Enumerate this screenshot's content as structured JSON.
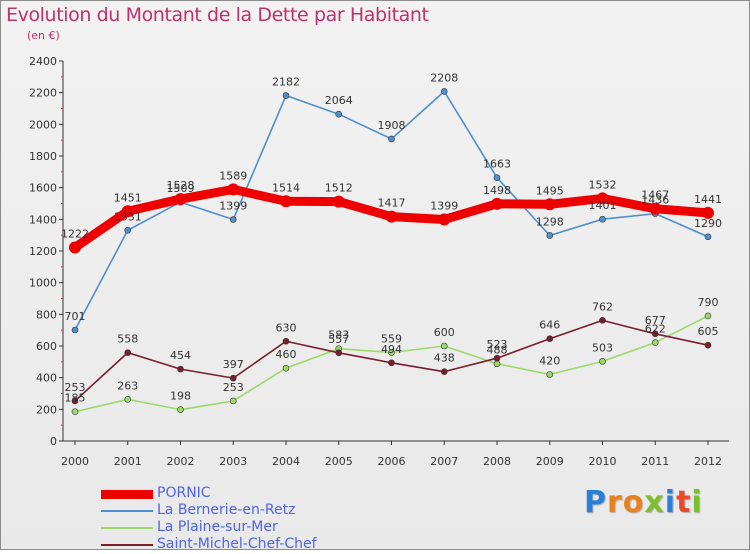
{
  "header": {
    "title": "Evolution du Montant de la Dette par Habitant",
    "subtitle": "(en €)"
  },
  "logo": {
    "text": "Proxiti",
    "colors": [
      "#2a7fd6",
      "#e8821e",
      "#e8821e",
      "#7bbf2a",
      "#2a7fd6",
      "#e84a2a",
      "#7bbf2a"
    ]
  },
  "chart_data": {
    "type": "line",
    "title": "Evolution du Montant de la Dette par Habitant",
    "subtitle": "(en €)",
    "xlabel": "",
    "ylabel": "",
    "x": [
      "2000",
      "2001",
      "2002",
      "2003",
      "2004",
      "2005",
      "2006",
      "2007",
      "2008",
      "2009",
      "2010",
      "2011",
      "2012"
    ],
    "ylim": [
      0,
      2400
    ],
    "yticks": [
      "0",
      "200",
      "400",
      "600",
      "800",
      "1000",
      "1200",
      "1400",
      "1600",
      "1800",
      "2000",
      "2200",
      "2400"
    ],
    "grid": false,
    "legend_position": "bottom-left",
    "series": [
      {
        "name": "PORNIC",
        "color": "#ee0000",
        "values": [
          1222,
          1451,
          1528,
          1589,
          1514,
          1512,
          1417,
          1399,
          1498,
          1495,
          1532,
          1467,
          1441
        ],
        "labels": [
          "1222",
          "1451",
          "1528",
          "1589",
          "1514",
          "1512",
          "1417",
          "1399",
          "1498",
          "1495",
          "1532",
          "1467",
          "1441"
        ]
      },
      {
        "name": "La Bernerie-en-Retz",
        "color": "#4f8fcd",
        "values": [
          701,
          1331,
          1509,
          1399,
          2182,
          2064,
          1908,
          2208,
          1663,
          1298,
          1401,
          1436,
          1290
        ],
        "labels": [
          "701",
          "1331",
          "1509",
          "1399",
          "2182",
          "2064",
          "1908",
          "2208",
          "1663",
          "1298",
          "1401",
          "1436",
          "1290"
        ]
      },
      {
        "name": "La Plaine-sur-Mer",
        "color": "#9bd96b",
        "values": [
          185,
          263,
          198,
          253,
          460,
          583,
          559,
          600,
          488,
          420,
          503,
          622,
          790
        ],
        "labels": [
          "185",
          "263",
          "198",
          "253",
          "460",
          "583",
          "559",
          "600",
          "488",
          "420",
          "503",
          "622",
          "790"
        ]
      },
      {
        "name": "Saint-Michel-Chef-Chef",
        "color": "#7a1e2e",
        "values": [
          253,
          558,
          454,
          397,
          630,
          557,
          494,
          438,
          523,
          646,
          762,
          677,
          605
        ],
        "labels": [
          "253",
          "558",
          "454",
          "397",
          "630",
          "557",
          "494",
          "438",
          "523",
          "646",
          "762",
          "677",
          "605"
        ]
      }
    ]
  }
}
